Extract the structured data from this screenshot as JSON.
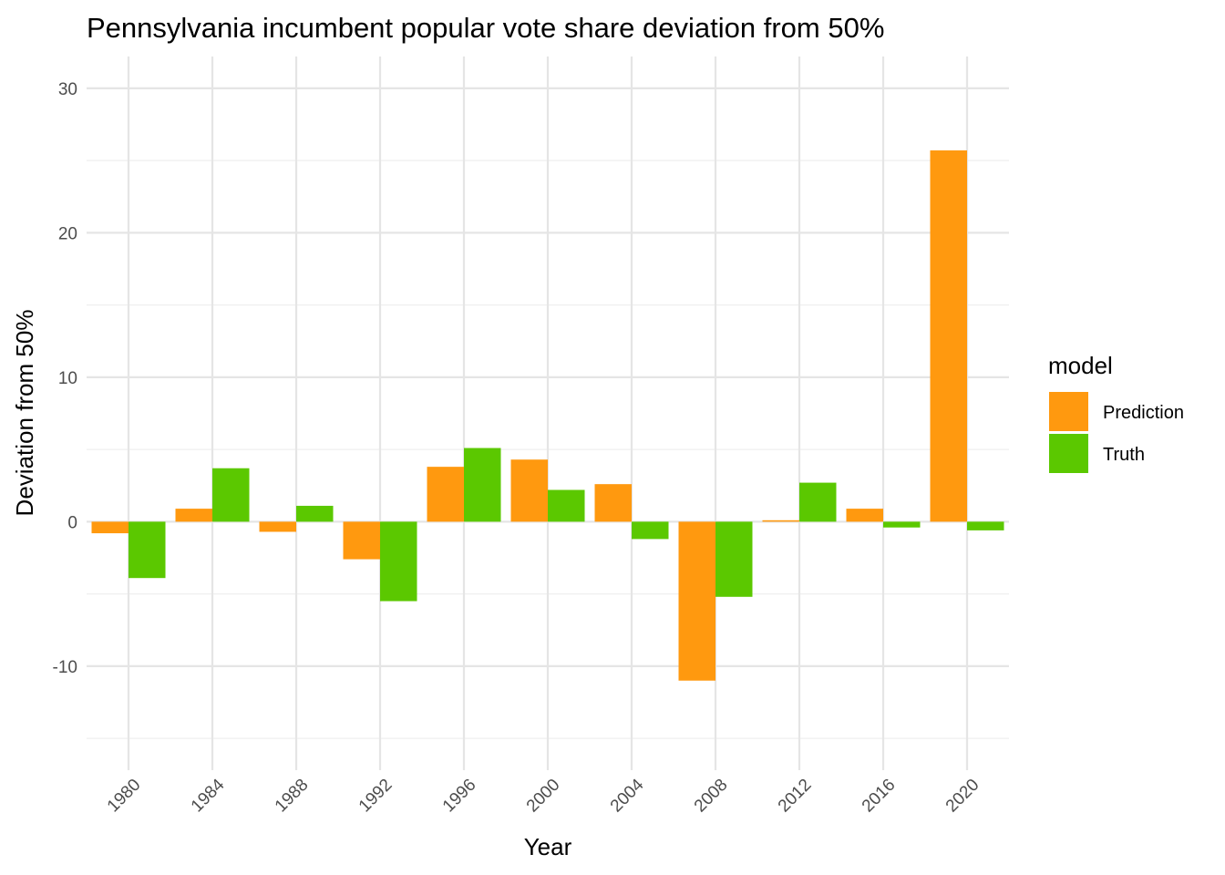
{
  "chart_data": {
    "type": "bar",
    "title": "Pennsylvania incumbent popular vote share deviation from 50%",
    "xlabel": "Year",
    "ylabel": "Deviation from 50%",
    "x_ticks": [
      "1980",
      "1984",
      "1988",
      "1992",
      "1996",
      "2000",
      "2004",
      "2008",
      "2012",
      "2016",
      "2020"
    ],
    "y_ticks": [
      -10,
      0,
      10,
      20,
      30
    ],
    "ylim": [
      -17.2,
      32.2
    ],
    "grid": true,
    "legend": {
      "title": "model",
      "position": "right"
    },
    "series": [
      {
        "name": "Prediction",
        "color": "#FF990F",
        "values": [
          -0.8,
          0.9,
          -0.7,
          -2.6,
          3.8,
          4.3,
          2.6,
          -11.0,
          0.1,
          0.9,
          25.7
        ]
      },
      {
        "name": "Truth",
        "color": "#5BC800",
        "values": [
          -3.9,
          3.7,
          1.1,
          -5.5,
          5.1,
          2.2,
          -1.2,
          -5.2,
          2.7,
          -0.4,
          -0.6
        ]
      }
    ]
  }
}
